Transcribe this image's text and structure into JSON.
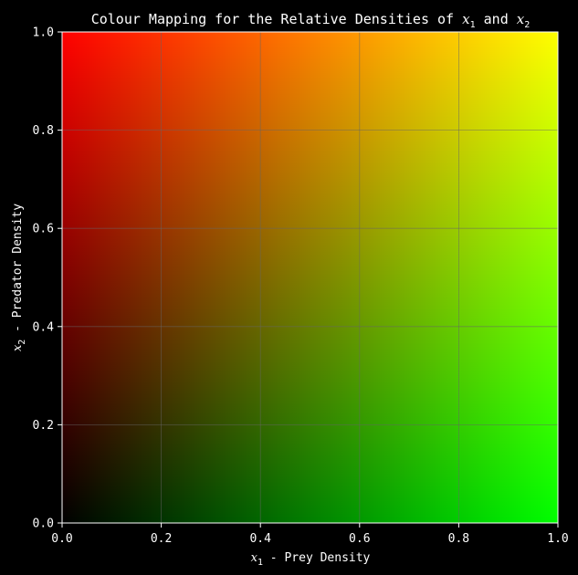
{
  "chart_data": {
    "type": "heatmap",
    "title": {
      "prefix": "Colour Mapping for the Relative Densities of ",
      "var1": "x",
      "sub1": "1",
      "mid": " and ",
      "var2": "x",
      "sub2": "2"
    },
    "xlabel": {
      "var": "x",
      "sub": "1",
      "text": " - Prey Density"
    },
    "ylabel": {
      "var": "x",
      "sub": "2",
      "text": " - Predator Density"
    },
    "xlim": [
      0.0,
      1.0
    ],
    "ylim": [
      0.0,
      1.0
    ],
    "xticks": [
      "0.0",
      "0.2",
      "0.4",
      "0.6",
      "0.8",
      "1.0"
    ],
    "yticks": [
      "0.0",
      "0.2",
      "0.4",
      "0.6",
      "0.8",
      "1.0"
    ],
    "grid": true,
    "color_mapping": {
      "red_channel": "x2",
      "green_channel": "x1",
      "blue_channel": "none",
      "corners": {
        "x1=0,x2=0": "#000000",
        "x1=1,x2=0": "#00ff00",
        "x1=0,x2=1": "#ff0000",
        "x1=1,x2=1": "#ffff00"
      }
    },
    "background": "#000000",
    "grid_color": "#666666"
  }
}
